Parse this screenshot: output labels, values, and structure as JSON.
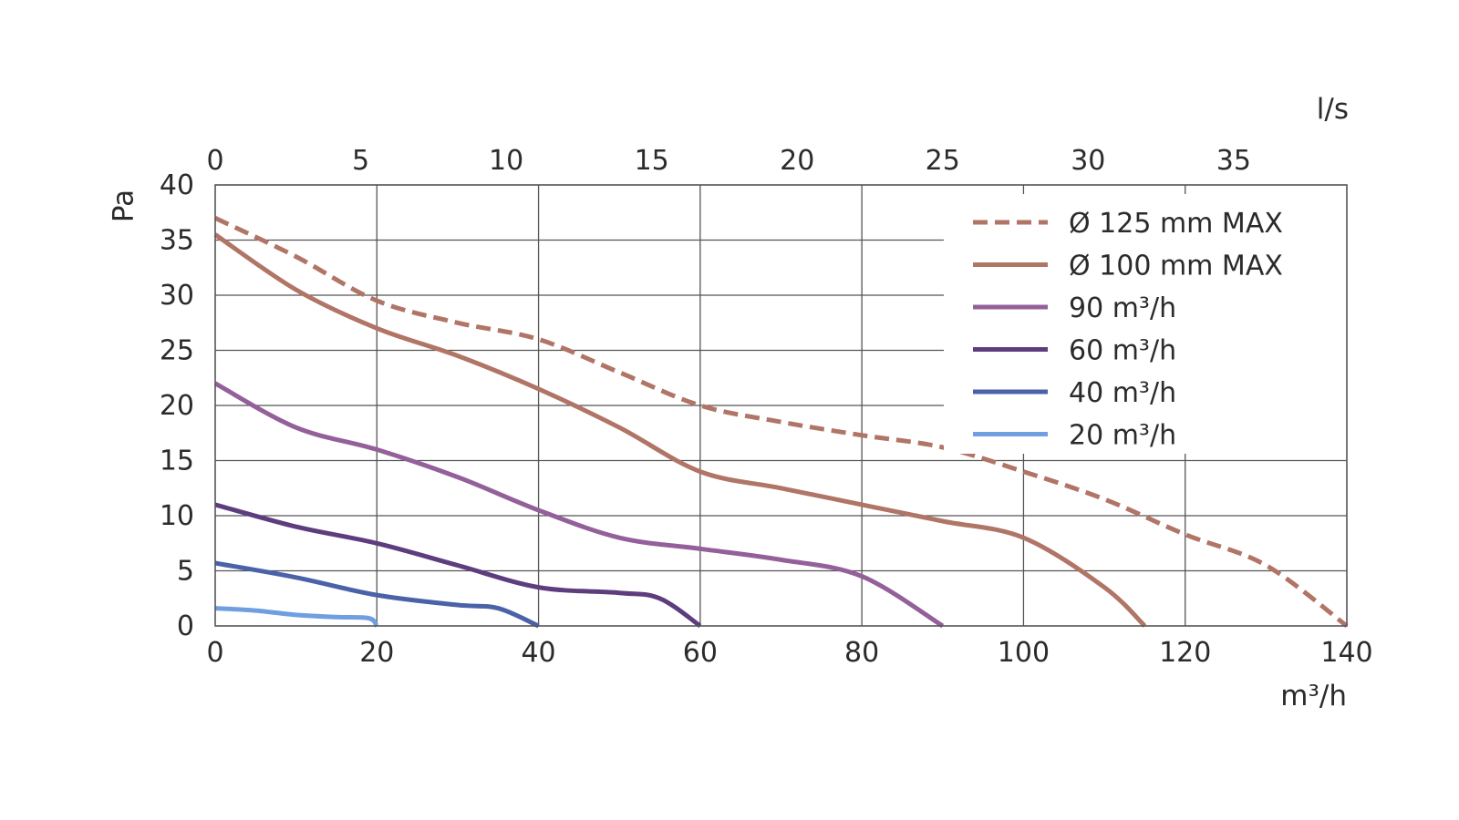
{
  "chart_data": {
    "type": "line",
    "xlabel": "m³/h",
    "x2label": "l/s",
    "ylabel": "Pa",
    "xlim": [
      0,
      140
    ],
    "x2lim": [
      0,
      38.89
    ],
    "ylim": [
      0,
      40
    ],
    "x_ticks": [
      0,
      20,
      40,
      60,
      80,
      100,
      120,
      140
    ],
    "x2_ticks": [
      0,
      5,
      10,
      15,
      20,
      25,
      30,
      35
    ],
    "y_ticks": [
      0,
      5,
      10,
      15,
      20,
      25,
      30,
      35,
      40
    ],
    "grid": true,
    "grid_x_step": 20,
    "grid_y_step": 5,
    "legend_position": "top-right",
    "series": [
      {
        "name": "Ø 125 mm MAX",
        "color": "#b07566",
        "dash": "dashed",
        "x": [
          0,
          10,
          20,
          30,
          40,
          50,
          60,
          70,
          80,
          90,
          100,
          110,
          120,
          130,
          140
        ],
        "y": [
          37,
          33.5,
          29.5,
          27.5,
          26,
          23,
          20,
          18.5,
          17.3,
          16.2,
          14,
          11.5,
          8.3,
          5.5,
          0
        ]
      },
      {
        "name": "Ø 100 mm MAX",
        "color": "#b07566",
        "dash": "solid",
        "x": [
          0,
          10,
          20,
          30,
          40,
          50,
          60,
          70,
          80,
          90,
          100,
          110,
          115
        ],
        "y": [
          35.5,
          30.5,
          27,
          24.5,
          21.5,
          18,
          14,
          12.5,
          11,
          9.5,
          8,
          3.5,
          0
        ]
      },
      {
        "name": "90 m³/h",
        "color": "#93609a",
        "dash": "solid",
        "x": [
          0,
          10,
          20,
          30,
          40,
          50,
          60,
          70,
          80,
          90
        ],
        "y": [
          22,
          18,
          16,
          13.5,
          10.5,
          8,
          7,
          6,
          4.5,
          0
        ]
      },
      {
        "name": "60 m³/h",
        "color": "#5e3d7e",
        "dash": "solid",
        "x": [
          0,
          10,
          20,
          30,
          40,
          50,
          55,
          60
        ],
        "y": [
          11,
          9,
          7.5,
          5.5,
          3.5,
          3,
          2.5,
          0
        ]
      },
      {
        "name": "40 m³/h",
        "color": "#4b62a8",
        "dash": "solid",
        "x": [
          0,
          10,
          20,
          30,
          35,
          40
        ],
        "y": [
          5.7,
          4.4,
          2.8,
          1.9,
          1.6,
          0
        ]
      },
      {
        "name": "20 m³/h",
        "color": "#6f9fe0",
        "dash": "solid",
        "x": [
          0,
          5,
          10,
          15,
          19,
          20
        ],
        "y": [
          1.6,
          1.4,
          1.0,
          0.8,
          0.7,
          0
        ]
      }
    ]
  }
}
